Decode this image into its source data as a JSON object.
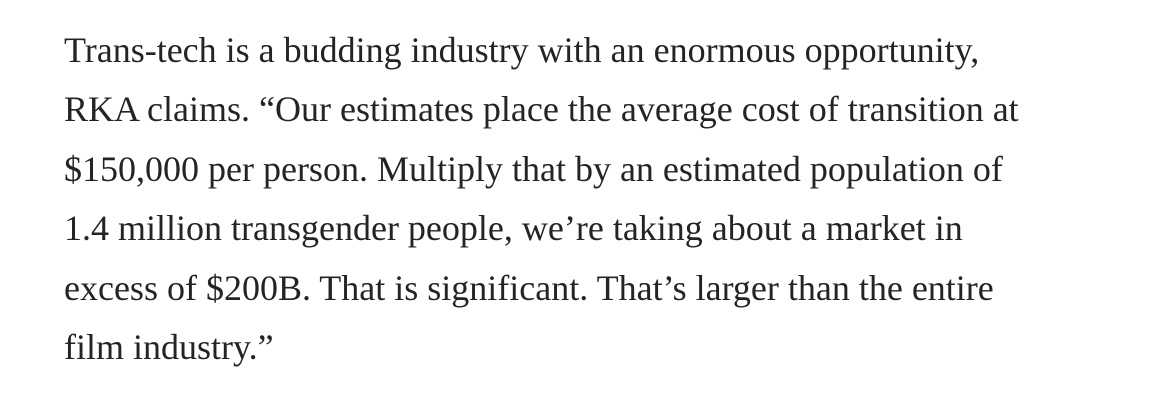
{
  "paragraph": {
    "lines": [
      "Trans-tech is a budding industry with an enormous opportunity,",
      "RKA claims. “Our estimates place the average cost of transition at",
      "$150,000 per person. Multiply that by an estimated population of",
      "1.4 million transgender people, we’re taking about a market in",
      "excess of $200B. That is significant. That’s larger than the entire",
      "film industry.”"
    ]
  }
}
